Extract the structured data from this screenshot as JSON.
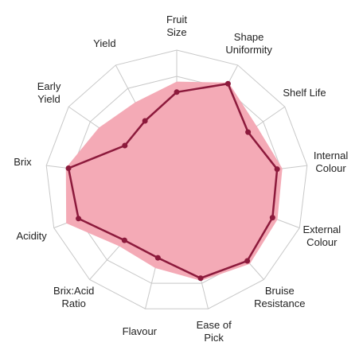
{
  "chart_data": {
    "type": "radar",
    "categories": [
      "Fruit\nSize",
      "Shape\nUniformity",
      "Shelf Life",
      "Internal\nColour",
      "External\nColour",
      "Bruise\nResistance",
      "Ease of\nPick",
      "Flavour",
      "Brix:Acid\nRatio",
      "Acidity",
      "Brix",
      "Early\nYield",
      "Yield"
    ],
    "series": [
      {
        "color": "#f4aab6",
        "fill": true,
        "values": [
          3.8,
          4.25,
          3.7,
          4.05,
          4.1,
          4.2,
          3.9,
          3.4,
          3.3,
          4.5,
          4.25,
          3.6,
          3.4
        ]
      },
      {
        "color": "#8c1a3c",
        "fill": false,
        "values": [
          3.4,
          4.2,
          3.3,
          3.85,
          3.9,
          4.05,
          3.8,
          3.0,
          3.0,
          4.0,
          4.15,
          2.4,
          2.6
        ]
      }
    ],
    "ylim": [
      0,
      5
    ],
    "yticks": [
      1,
      2,
      3,
      4,
      5
    ],
    "grid": true
  }
}
